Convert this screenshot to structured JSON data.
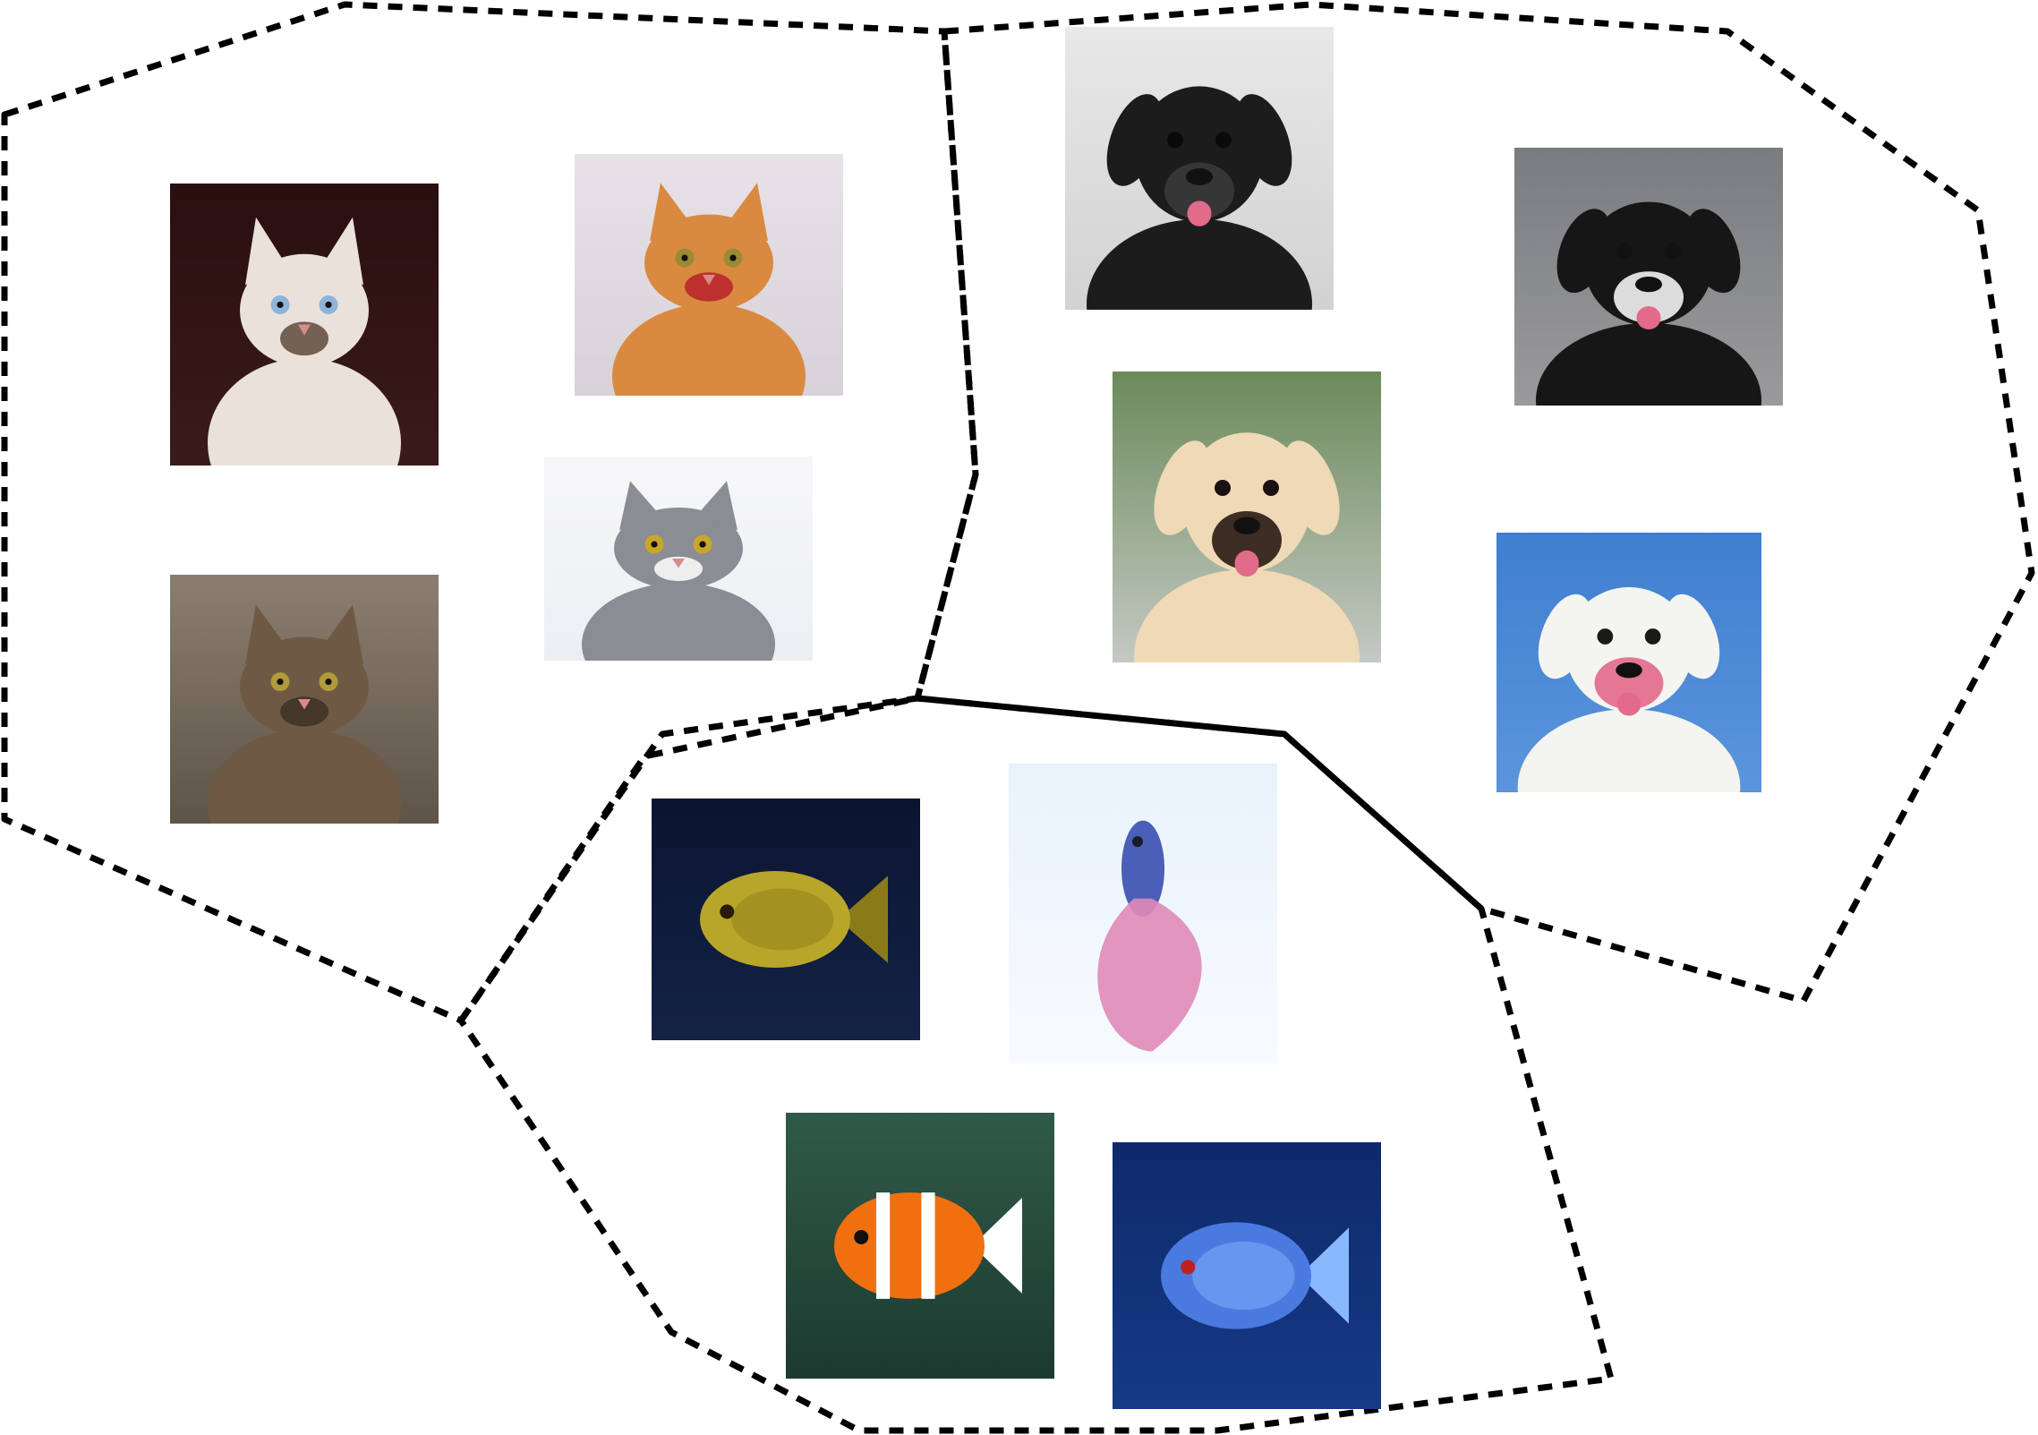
{
  "colors": {
    "background": "#ffffff",
    "boundary": "#000000"
  },
  "clusters": [
    {
      "category": "cat",
      "items": [
        {
          "subject": "white-kitten",
          "palette": {
            "bg": "#2a0f10",
            "bg2": "#3b1a1a",
            "body": "#e9e1da",
            "accent": "#5f4a3c",
            "eye": "#8fb3d8"
          }
        },
        {
          "subject": "orange-tabby-cat",
          "palette": {
            "bg": "#e6e2e7",
            "bg2": "#d8d2d8",
            "body": "#d98a40",
            "accent": "#b8202b",
            "eye": "#9a8a35"
          }
        },
        {
          "subject": "gray-white-cat",
          "palette": {
            "bg": "#f7f7f9",
            "bg2": "#eceff2",
            "body": "#8a8d94",
            "accent": "#ffffff",
            "eye": "#c9a62a"
          }
        },
        {
          "subject": "tabby-cat",
          "palette": {
            "bg": "#8a7e70",
            "bg2": "#5e5448",
            "body": "#6e5a44",
            "accent": "#3d3226",
            "eye": "#b09a3a"
          }
        }
      ]
    },
    {
      "category": "dog",
      "items": [
        {
          "subject": "black-pug",
          "palette": {
            "bg": "#e8e8e8",
            "bg2": "#d2d2d2",
            "body": "#1c1c1c",
            "accent": "#3a3a3a",
            "eye": "#0a0a0a"
          }
        },
        {
          "subject": "border-collie",
          "palette": {
            "bg": "#7a7c80",
            "bg2": "#9a9a9c",
            "body": "#161616",
            "accent": "#f2f2f2",
            "eye": "#e07a8a"
          }
        },
        {
          "subject": "golden-retriever",
          "palette": {
            "bg": "#6b8a5a",
            "bg2": "#c4c9c4",
            "body": "#efd9b6",
            "accent": "#2a1a12",
            "eye": "#1a1010"
          }
        },
        {
          "subject": "white-swiss-shepherd",
          "palette": {
            "bg": "#3f7fd0",
            "bg2": "#5b95dc",
            "body": "#f4f4f0",
            "accent": "#e26a8a",
            "eye": "#1a1a1a"
          }
        }
      ]
    },
    {
      "category": "fish",
      "items": [
        {
          "subject": "yellow-cichlid",
          "palette": {
            "bg": "#0a1530",
            "bg2": "#142246",
            "body": "#b8a62a",
            "accent": "#8a7a18",
            "eye": "#2a1a08"
          }
        },
        {
          "subject": "pink-betta",
          "palette": {
            "bg": "#e9f2fb",
            "bg2": "#f7fbff",
            "body": "#e089b8",
            "accent": "#4a5fb8",
            "eye": "#1a1a2a"
          }
        },
        {
          "subject": "clownfish",
          "palette": {
            "bg": "#2f5a48",
            "bg2": "#1d3a30",
            "body": "#f07010",
            "accent": "#ffffff",
            "eye": "#101010"
          }
        },
        {
          "subject": "blue-discus",
          "palette": {
            "bg": "#0e2a6a",
            "bg2": "#163a86",
            "body": "#4a7ae0",
            "accent": "#8ab8ff",
            "eye": "#c02020"
          }
        }
      ]
    }
  ]
}
